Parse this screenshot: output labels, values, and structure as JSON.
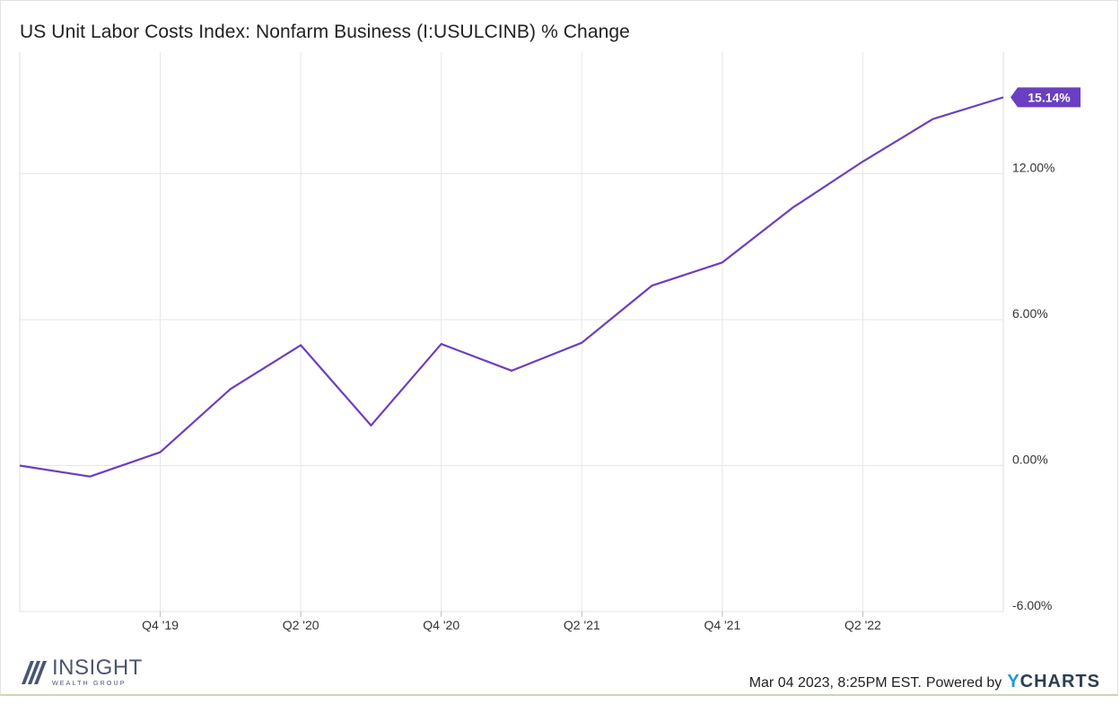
{
  "title": "US Unit Labor Costs Index: Nonfarm Business (I:USULCINB) % Change",
  "footer": {
    "timestamp": "Mar 04 2023, 8:25PM EST.",
    "powered_by": "Powered by",
    "brand_y": "Y",
    "brand_rest": "CHARTS"
  },
  "logo": {
    "name_main": "INSIGHT",
    "name_sub": "WEALTH GROUP"
  },
  "colors": {
    "series": "#6a3fc2",
    "grid": "#e6e6e6"
  },
  "chart_data": {
    "type": "line",
    "title": "US Unit Labor Costs Index: Nonfarm Business (I:USULCINB) % Change",
    "x_ticks": [
      "Q4 '19",
      "Q2 '20",
      "Q4 '20",
      "Q2 '21",
      "Q4 '21",
      "Q2 '22"
    ],
    "y_ticks": [
      "-6.00%",
      "0.00%",
      "6.00%",
      "12.00%"
    ],
    "ylim": [
      -6,
      17
    ],
    "last_value_label": "15.14%",
    "series": [
      {
        "x": [
          "Q2 '19",
          "Q3 '19",
          "Q4 '19",
          "Q1 '20",
          "Q2 '20",
          "Q3 '20",
          "Q4 '20",
          "Q1 '21",
          "Q2 '21",
          "Q3 '21",
          "Q4 '21",
          "Q1 '22",
          "Q2 '22",
          "Q3 '22",
          "Q4 '22"
        ],
        "values": [
          0.0,
          -0.45,
          0.55,
          3.15,
          4.95,
          1.65,
          5.0,
          3.9,
          5.05,
          7.4,
          8.35,
          10.6,
          12.5,
          14.25,
          15.14
        ]
      }
    ]
  }
}
